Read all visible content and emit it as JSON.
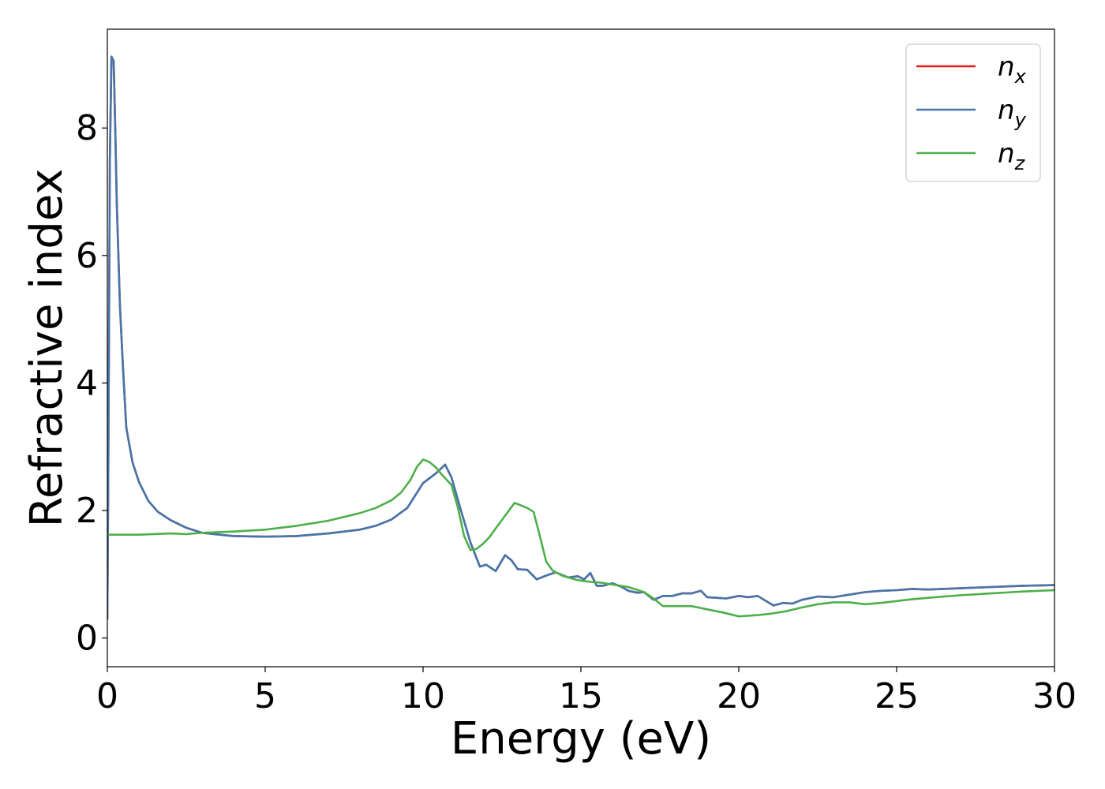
{
  "chart_data": {
    "type": "line",
    "xlabel": "Energy (eV)",
    "ylabel": "Refractive index",
    "xlim": [
      0,
      30
    ],
    "ylim": [
      -0.45,
      9.55
    ],
    "xticks": [
      0,
      5,
      10,
      15,
      20,
      25,
      30
    ],
    "yticks": [
      0,
      2,
      4,
      6,
      8
    ],
    "grid": false,
    "legend_position": "top-right",
    "series": [
      {
        "name": "n_x",
        "name_base": "n",
        "name_sub": "x",
        "color": "#e41a1c",
        "x": [
          0,
          0.03,
          0.08,
          0.13,
          0.2,
          0.25,
          0.3,
          0.4,
          0.5,
          0.6,
          0.8,
          1.0,
          1.3,
          1.6,
          2.0,
          2.5,
          3.0,
          4.0,
          5.0,
          6.0,
          7.0,
          8.0,
          8.5,
          9.0,
          9.5,
          10.0,
          10.4,
          10.7,
          10.9,
          11.2,
          11.5,
          11.8,
          12.0,
          12.3,
          12.6,
          12.8,
          13.0,
          13.3,
          13.6,
          13.9,
          14.2,
          14.6,
          14.9,
          15.1,
          15.3,
          15.5,
          15.7,
          16.0,
          16.3,
          16.5,
          16.8,
          17.0,
          17.3,
          17.6,
          17.9,
          18.2,
          18.5,
          18.8,
          19.0,
          19.3,
          19.6,
          20.0,
          20.3,
          20.6,
          20.8,
          21.1,
          21.4,
          21.7,
          22.0,
          22.5,
          23.0,
          23.5,
          24.0,
          24.5,
          25.0,
          25.5,
          26.0,
          27.0,
          28.0,
          29.0,
          30.0
        ],
        "y": [
          0.3,
          2.6,
          7.5,
          9.12,
          9.05,
          8.0,
          6.8,
          5.2,
          4.2,
          3.3,
          2.75,
          2.45,
          2.15,
          1.98,
          1.85,
          1.73,
          1.65,
          1.6,
          1.59,
          1.6,
          1.64,
          1.7,
          1.76,
          1.86,
          2.04,
          2.43,
          2.58,
          2.72,
          2.52,
          2.0,
          1.5,
          1.12,
          1.15,
          1.05,
          1.3,
          1.22,
          1.08,
          1.07,
          0.92,
          0.98,
          1.03,
          0.95,
          0.97,
          0.92,
          1.02,
          0.82,
          0.82,
          0.86,
          0.8,
          0.74,
          0.71,
          0.72,
          0.6,
          0.66,
          0.66,
          0.7,
          0.7,
          0.74,
          0.64,
          0.63,
          0.62,
          0.66,
          0.64,
          0.66,
          0.6,
          0.51,
          0.55,
          0.54,
          0.6,
          0.65,
          0.64,
          0.68,
          0.72,
          0.74,
          0.75,
          0.77,
          0.76,
          0.78,
          0.8,
          0.82,
          0.83
        ]
      },
      {
        "name": "n_y",
        "name_base": "n",
        "name_sub": "y",
        "color": "#4477aa",
        "x": [
          0,
          0.03,
          0.08,
          0.13,
          0.2,
          0.25,
          0.3,
          0.4,
          0.5,
          0.6,
          0.8,
          1.0,
          1.3,
          1.6,
          2.0,
          2.5,
          3.0,
          4.0,
          5.0,
          6.0,
          7.0,
          8.0,
          8.5,
          9.0,
          9.5,
          10.0,
          10.4,
          10.7,
          10.9,
          11.2,
          11.5,
          11.8,
          12.0,
          12.3,
          12.6,
          12.8,
          13.0,
          13.3,
          13.6,
          13.9,
          14.2,
          14.6,
          14.9,
          15.1,
          15.3,
          15.5,
          15.7,
          16.0,
          16.3,
          16.5,
          16.8,
          17.0,
          17.3,
          17.6,
          17.9,
          18.2,
          18.5,
          18.8,
          19.0,
          19.3,
          19.6,
          20.0,
          20.3,
          20.6,
          20.8,
          21.1,
          21.4,
          21.7,
          22.0,
          22.5,
          23.0,
          23.5,
          24.0,
          24.5,
          25.0,
          25.5,
          26.0,
          27.0,
          28.0,
          29.0,
          30.0
        ],
        "y": [
          0.3,
          2.6,
          7.5,
          9.12,
          9.05,
          8.0,
          6.8,
          5.2,
          4.2,
          3.3,
          2.75,
          2.45,
          2.15,
          1.98,
          1.85,
          1.73,
          1.65,
          1.6,
          1.59,
          1.6,
          1.64,
          1.7,
          1.76,
          1.86,
          2.04,
          2.43,
          2.58,
          2.72,
          2.52,
          2.0,
          1.5,
          1.12,
          1.15,
          1.05,
          1.3,
          1.22,
          1.08,
          1.07,
          0.92,
          0.98,
          1.03,
          0.95,
          0.97,
          0.92,
          1.02,
          0.82,
          0.82,
          0.86,
          0.8,
          0.74,
          0.71,
          0.72,
          0.6,
          0.66,
          0.66,
          0.7,
          0.7,
          0.74,
          0.64,
          0.63,
          0.62,
          0.66,
          0.64,
          0.66,
          0.6,
          0.51,
          0.55,
          0.54,
          0.6,
          0.65,
          0.64,
          0.68,
          0.72,
          0.74,
          0.75,
          0.77,
          0.76,
          0.78,
          0.8,
          0.82,
          0.83
        ]
      },
      {
        "name": "n_z",
        "name_base": "n",
        "name_sub": "z",
        "color": "#4daf4a",
        "x": [
          0,
          0.5,
          1.0,
          2.0,
          2.5,
          3.0,
          4.0,
          5.0,
          6.0,
          7.0,
          7.5,
          8.0,
          8.5,
          9.0,
          9.3,
          9.6,
          9.8,
          10.0,
          10.2,
          10.4,
          10.6,
          10.9,
          11.1,
          11.3,
          11.5,
          11.7,
          11.9,
          12.1,
          12.3,
          12.6,
          12.9,
          13.1,
          13.3,
          13.5,
          13.7,
          13.9,
          14.1,
          14.4,
          14.8,
          15.0,
          15.3,
          15.6,
          16.0,
          16.5,
          17.0,
          17.3,
          17.6,
          18.0,
          18.5,
          19.0,
          19.5,
          20.0,
          20.3,
          20.6,
          21.0,
          21.5,
          22.0,
          22.5,
          23.0,
          23.5,
          24.0,
          24.5,
          25.0,
          25.5,
          26.0,
          27.0,
          28.0,
          29.0,
          30.0
        ],
        "y": [
          1.62,
          1.62,
          1.62,
          1.64,
          1.63,
          1.65,
          1.67,
          1.7,
          1.76,
          1.84,
          1.9,
          1.96,
          2.04,
          2.16,
          2.28,
          2.48,
          2.68,
          2.8,
          2.76,
          2.68,
          2.56,
          2.4,
          2.05,
          1.6,
          1.38,
          1.4,
          1.48,
          1.58,
          1.72,
          1.92,
          2.12,
          2.08,
          2.04,
          1.98,
          1.6,
          1.2,
          1.06,
          0.98,
          0.92,
          0.9,
          0.88,
          0.87,
          0.84,
          0.8,
          0.72,
          0.62,
          0.5,
          0.5,
          0.5,
          0.45,
          0.4,
          0.34,
          0.35,
          0.36,
          0.38,
          0.42,
          0.48,
          0.53,
          0.56,
          0.56,
          0.53,
          0.55,
          0.58,
          0.61,
          0.63,
          0.67,
          0.7,
          0.73,
          0.75
        ]
      }
    ]
  }
}
